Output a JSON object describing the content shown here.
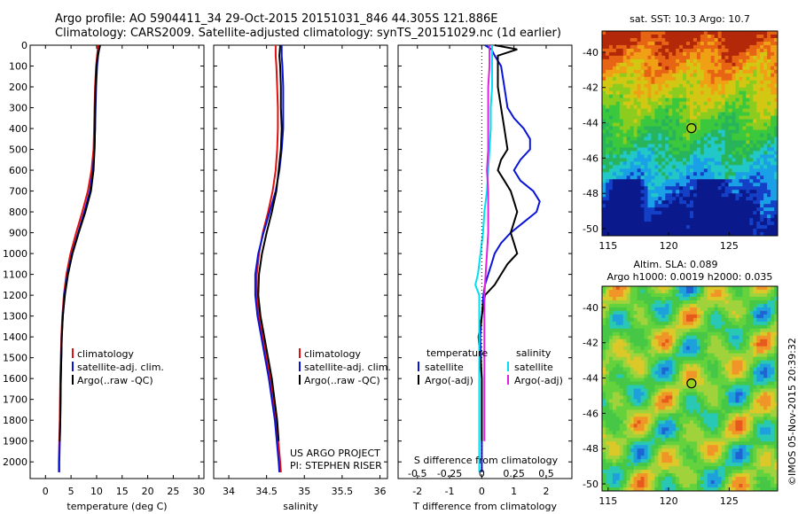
{
  "header": {
    "line1": "Argo profile: AO 5904411_34 29-Oct-2015 20151031_846 44.305S 121.886E",
    "line2": "Climatology: CARS2009. Satellite-adjusted climatology: synTS_20151029.nc (1d earlier)"
  },
  "credit": {
    "line1": "US ARGO PROJECT",
    "line2": "PI: STEPHEN RISER"
  },
  "timestamp": "©IMOS 05-Nov-2015 20:39:32",
  "colors": {
    "climatology": "#e01010",
    "satellite": "#0a14d8",
    "argo": "#000000",
    "argo_salinity_diff": "#e020e0",
    "satellite_salinity_diff": "#00e0f0"
  },
  "chart_data": [
    {
      "type": "line",
      "xlabel": "temperature (deg C)",
      "ylabel": "",
      "xlim": [
        -3,
        31
      ],
      "ylim": [
        2080,
        0
      ],
      "xticks": [
        0,
        5,
        10,
        15,
        20,
        25,
        30
      ],
      "yticks": [
        0,
        100,
        200,
        300,
        400,
        500,
        600,
        700,
        800,
        900,
        1000,
        1100,
        1200,
        1300,
        1400,
        1500,
        1600,
        1700,
        1800,
        1900,
        2000
      ],
      "legend": {
        "position": "lower-center",
        "entries": [
          "climatology",
          "satellite-adj. clim.",
          "Argo(..raw -QC)"
        ]
      },
      "series": [
        {
          "name": "climatology",
          "color": "#e01010",
          "depth": [
            0,
            50,
            100,
            200,
            300,
            400,
            500,
            600,
            700,
            800,
            900,
            1000,
            1100,
            1200,
            1300,
            1400,
            1600,
            1800,
            2000,
            2050
          ],
          "values": [
            10.3,
            10.1,
            9.9,
            9.7,
            9.6,
            9.5,
            9.4,
            9.0,
            8.3,
            7.2,
            6.0,
            4.9,
            4.1,
            3.6,
            3.3,
            3.1,
            2.9,
            2.8,
            2.6,
            2.6
          ]
        },
        {
          "name": "satellite-adj. clim.",
          "color": "#0a14d8",
          "depth": [
            0,
            50,
            100,
            200,
            300,
            400,
            500,
            600,
            700,
            800,
            900,
            1000,
            1100,
            1200,
            1300,
            1400,
            1600,
            1800,
            2000,
            2050
          ],
          "values": [
            10.6,
            10.3,
            10.1,
            9.9,
            9.8,
            9.7,
            9.6,
            9.3,
            8.7,
            7.6,
            6.4,
            5.2,
            4.3,
            3.7,
            3.4,
            3.2,
            3.0,
            2.9,
            2.7,
            2.7
          ]
        },
        {
          "name": "Argo(..raw -QC)",
          "color": "#000000",
          "depth": [
            0,
            50,
            100,
            200,
            300,
            400,
            500,
            600,
            700,
            800,
            900,
            1000,
            1100,
            1200,
            1300,
            1400,
            1600,
            1800,
            1900
          ],
          "values": [
            10.7,
            10.2,
            10.0,
            9.8,
            9.7,
            9.7,
            9.6,
            9.4,
            8.9,
            7.8,
            6.5,
            5.3,
            4.4,
            3.8,
            3.4,
            3.2,
            3.0,
            2.9,
            2.8
          ]
        }
      ]
    },
    {
      "type": "line",
      "xlabel": "salinity",
      "ylabel": "",
      "xlim": [
        33.8,
        36.1
      ],
      "ylim": [
        2080,
        0
      ],
      "xticks": [
        34,
        34.5,
        35,
        35.5,
        36
      ],
      "legend": {
        "position": "lower-center",
        "entries": [
          "climatology",
          "satellite-adj. clim.",
          "Argo(..raw -QC)"
        ]
      },
      "series": [
        {
          "name": "climatology",
          "color": "#e01010",
          "depth": [
            0,
            50,
            100,
            200,
            300,
            400,
            500,
            600,
            700,
            800,
            900,
            1000,
            1100,
            1200,
            1300,
            1400,
            1600,
            1800,
            2000,
            2050
          ],
          "values": [
            34.62,
            34.62,
            34.63,
            34.64,
            34.65,
            34.65,
            34.64,
            34.62,
            34.58,
            34.52,
            34.45,
            34.4,
            34.37,
            34.37,
            34.4,
            34.45,
            34.55,
            34.63,
            34.68,
            34.69
          ]
        },
        {
          "name": "satellite-adj. clim.",
          "color": "#0a14d8",
          "depth": [
            0,
            50,
            100,
            200,
            300,
            400,
            500,
            600,
            700,
            800,
            900,
            1000,
            1100,
            1200,
            1300,
            1400,
            1600,
            1800,
            2000,
            2050
          ],
          "values": [
            34.7,
            34.7,
            34.71,
            34.72,
            34.72,
            34.72,
            34.7,
            34.67,
            34.62,
            34.54,
            34.46,
            34.39,
            34.35,
            34.35,
            34.38,
            34.43,
            34.53,
            34.61,
            34.66,
            34.67
          ]
        },
        {
          "name": "Argo(..raw -QC)",
          "color": "#000000",
          "depth": [
            0,
            50,
            100,
            200,
            300,
            400,
            500,
            600,
            700,
            800,
            900,
            1000,
            1100,
            1200,
            1300,
            1400,
            1600,
            1800,
            1900
          ],
          "values": [
            34.68,
            34.67,
            34.68,
            34.69,
            34.69,
            34.7,
            34.69,
            34.66,
            34.63,
            34.57,
            34.5,
            34.44,
            34.4,
            34.39,
            34.42,
            34.47,
            34.57,
            34.64,
            34.66
          ]
        }
      ]
    },
    {
      "type": "line",
      "xlabel": "T difference from climatology",
      "xlabel2": "S difference from climatology",
      "xlim": [
        -2.6,
        2.8
      ],
      "x2lim": [
        -0.65,
        0.7
      ],
      "ylim": [
        2080,
        0
      ],
      "xticks": [
        -2,
        -1,
        0,
        1,
        2
      ],
      "x2ticks": [
        -0.5,
        -0.25,
        0,
        0.25,
        0.5
      ],
      "x2ticklabels": [
        "-0.5",
        "-0.25",
        "0",
        "0.25",
        "0.5"
      ],
      "legend": {
        "temperature_title": "temperature",
        "salinity_title": "salinity",
        "entries": [
          "satellite",
          "Argo(-adj)",
          "satellite",
          "Argo(-adj)"
        ]
      },
      "series": [
        {
          "name": "satellite",
          "group": "temperature",
          "color": "#0a14d8",
          "depth": [
            0,
            20,
            50,
            100,
            200,
            300,
            350,
            400,
            450,
            500,
            550,
            600,
            650,
            700,
            750,
            800,
            850,
            900,
            950,
            1000,
            1050,
            1100,
            1150,
            1200,
            1300,
            1400,
            1600,
            1800,
            2000,
            2050
          ],
          "values": [
            0.1,
            0.3,
            0.4,
            0.6,
            0.7,
            0.8,
            1.0,
            1.3,
            1.5,
            1.5,
            1.2,
            1.0,
            1.2,
            1.6,
            1.8,
            1.7,
            1.3,
            0.9,
            0.6,
            0.4,
            0.3,
            0.2,
            0.1,
            0.05,
            0.0,
            -0.05,
            0.0,
            0.0,
            0.0,
            0.0
          ]
        },
        {
          "name": "Argo(-adj)",
          "group": "temperature",
          "color": "#000000",
          "depth": [
            0,
            20,
            50,
            100,
            200,
            300,
            400,
            500,
            550,
            600,
            650,
            700,
            750,
            800,
            850,
            900,
            950,
            1000,
            1050,
            1100,
            1150,
            1200,
            1300,
            1400,
            1600,
            1800,
            1900
          ],
          "values": [
            0.4,
            1.1,
            0.5,
            0.5,
            0.5,
            0.6,
            0.7,
            0.8,
            0.6,
            0.5,
            0.7,
            0.9,
            1.0,
            1.1,
            1.0,
            0.9,
            1.0,
            1.1,
            0.8,
            0.6,
            0.4,
            0.1,
            0.0,
            -0.1,
            0.0,
            0.0,
            0.0
          ]
        },
        {
          "name": "satellite",
          "group": "salinity",
          "color": "#00e0f0",
          "depth": [
            0,
            100,
            200,
            300,
            400,
            500,
            600,
            700,
            800,
            900,
            1000,
            1100,
            1150,
            1200,
            1300,
            1400,
            1600,
            1800,
            2000,
            2050
          ],
          "values": [
            0.08,
            0.08,
            0.08,
            0.07,
            0.07,
            0.06,
            0.05,
            0.04,
            0.02,
            0.01,
            -0.01,
            -0.03,
            -0.05,
            -0.02,
            -0.02,
            -0.02,
            -0.02,
            -0.02,
            -0.02,
            -0.02
          ]
        },
        {
          "name": "Argo(-adj)",
          "group": "salinity",
          "color": "#e020e0",
          "depth": [
            0,
            100,
            200,
            300,
            400,
            500,
            600,
            700,
            800,
            900,
            1000,
            1100,
            1200,
            1300,
            1400,
            1600,
            1800,
            1900
          ],
          "values": [
            0.06,
            0.06,
            0.05,
            0.05,
            0.05,
            0.05,
            0.04,
            0.05,
            0.05,
            0.05,
            0.04,
            0.03,
            0.02,
            0.02,
            0.02,
            0.02,
            0.02,
            0.02
          ]
        }
      ]
    },
    {
      "type": "heatmap",
      "title": "sat. SST: 10.3 Argo: 10.7",
      "xlim": [
        114.5,
        129
      ],
      "ylim": [
        -50.4,
        -38.8
      ],
      "xticks": [
        115,
        120,
        125
      ],
      "yticks": [
        -40,
        -42,
        -44,
        -46,
        -48,
        -50
      ],
      "marker": {
        "lon": 121.886,
        "lat": -44.305
      }
    },
    {
      "type": "heatmap",
      "title": "Altim. SLA: 0.089",
      "subtitle": "Argo h1000: 0.0019 h2000: 0.035",
      "xlim": [
        114.5,
        129
      ],
      "ylim": [
        -50.4,
        -38.8
      ],
      "xticks": [
        115,
        120,
        125
      ],
      "yticks": [
        -40,
        -42,
        -44,
        -46,
        -48,
        -50
      ],
      "marker": {
        "lon": 121.886,
        "lat": -44.305
      }
    }
  ]
}
